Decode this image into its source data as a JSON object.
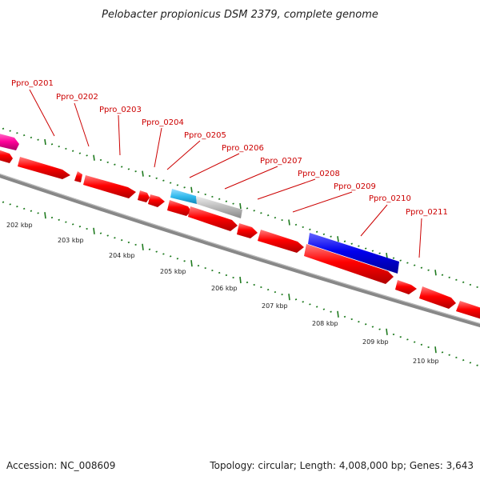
{
  "title": "Pelobacter propionicus DSM 2379, complete genome",
  "accession": "Accession: NC_008609",
  "summary": "Topology: circular; Length: 4,008,000 bp; Genes: 3,643",
  "colors": {
    "forward_cds": "#ff0000",
    "reverse_cds": "#ff0000",
    "rna": "#ff00aa",
    "highlight_dark": "#0000dd",
    "highlight_light": "#33bbee",
    "gray_feature": "#bbbbbb",
    "backbone": "#888888",
    "tick": "#1e7a1e",
    "label": "#cc0000"
  },
  "gene_labels": [
    "Ppro_0201",
    "Ppro_0202",
    "Ppro_0203",
    "Ppro_0204",
    "Ppro_0205",
    "Ppro_0206",
    "Ppro_0207",
    "Ppro_0208",
    "Ppro_0209",
    "Ppro_0210",
    "Ppro_0211"
  ],
  "kbp_labels": [
    "202 kbp",
    "203 kbp",
    "204 kbp",
    "205 kbp",
    "206 kbp",
    "207 kbp",
    "208 kbp",
    "209 kbp",
    "210 kbp"
  ]
}
